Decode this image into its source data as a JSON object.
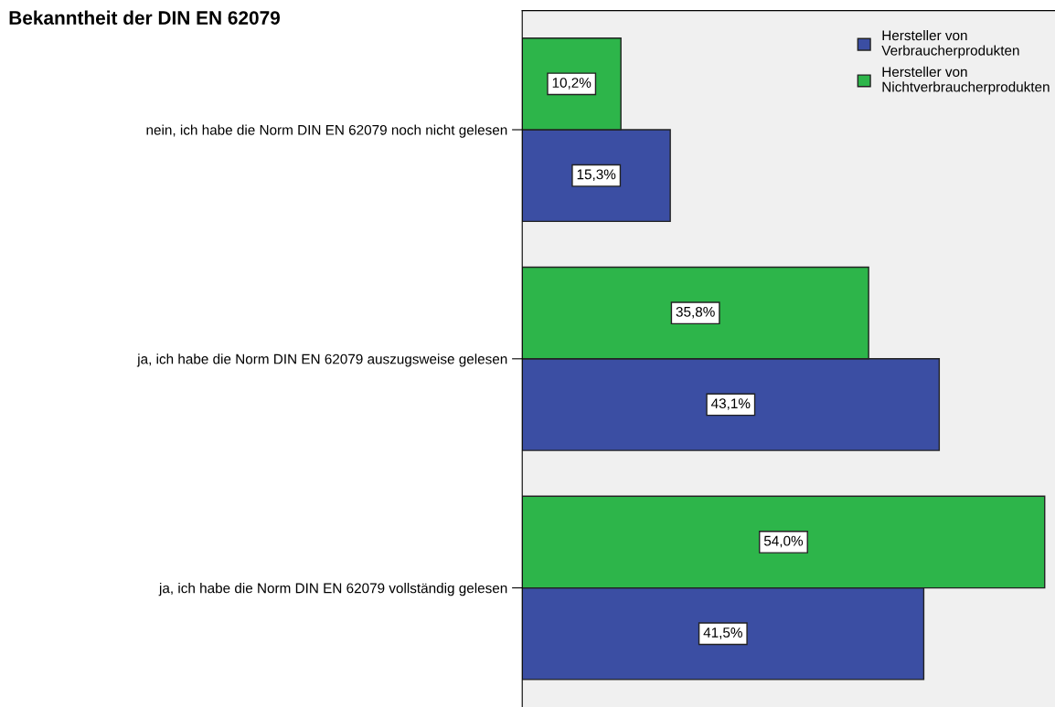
{
  "chart_data": {
    "type": "bar",
    "orientation": "horizontal",
    "title": "Bekanntheit der DIN EN 62079",
    "categories": [
      "nein, ich habe die Norm DIN EN 62079 noch nicht gelesen",
      "ja, ich habe die Norm DIN EN 62079 auszugsweise gelesen",
      "ja, ich habe die Norm DIN EN 62079 vollständig gelesen"
    ],
    "series": [
      {
        "name": "Hersteller von\nVerbraucherprodukten",
        "color": "#3b4ea3",
        "values": [
          15.3,
          43.1,
          41.5
        ],
        "value_labels": [
          "15,3%",
          "43,1%",
          "41,5%"
        ]
      },
      {
        "name": "Hersteller von\nNichtverbraucherprodukten",
        "color": "#2db54a",
        "values": [
          10.2,
          35.8,
          54.0
        ],
        "value_labels": [
          "10,2%",
          "35,8%",
          "54,0%"
        ]
      }
    ],
    "legend": "top right",
    "grid": false,
    "tick_labels": "y"
  }
}
